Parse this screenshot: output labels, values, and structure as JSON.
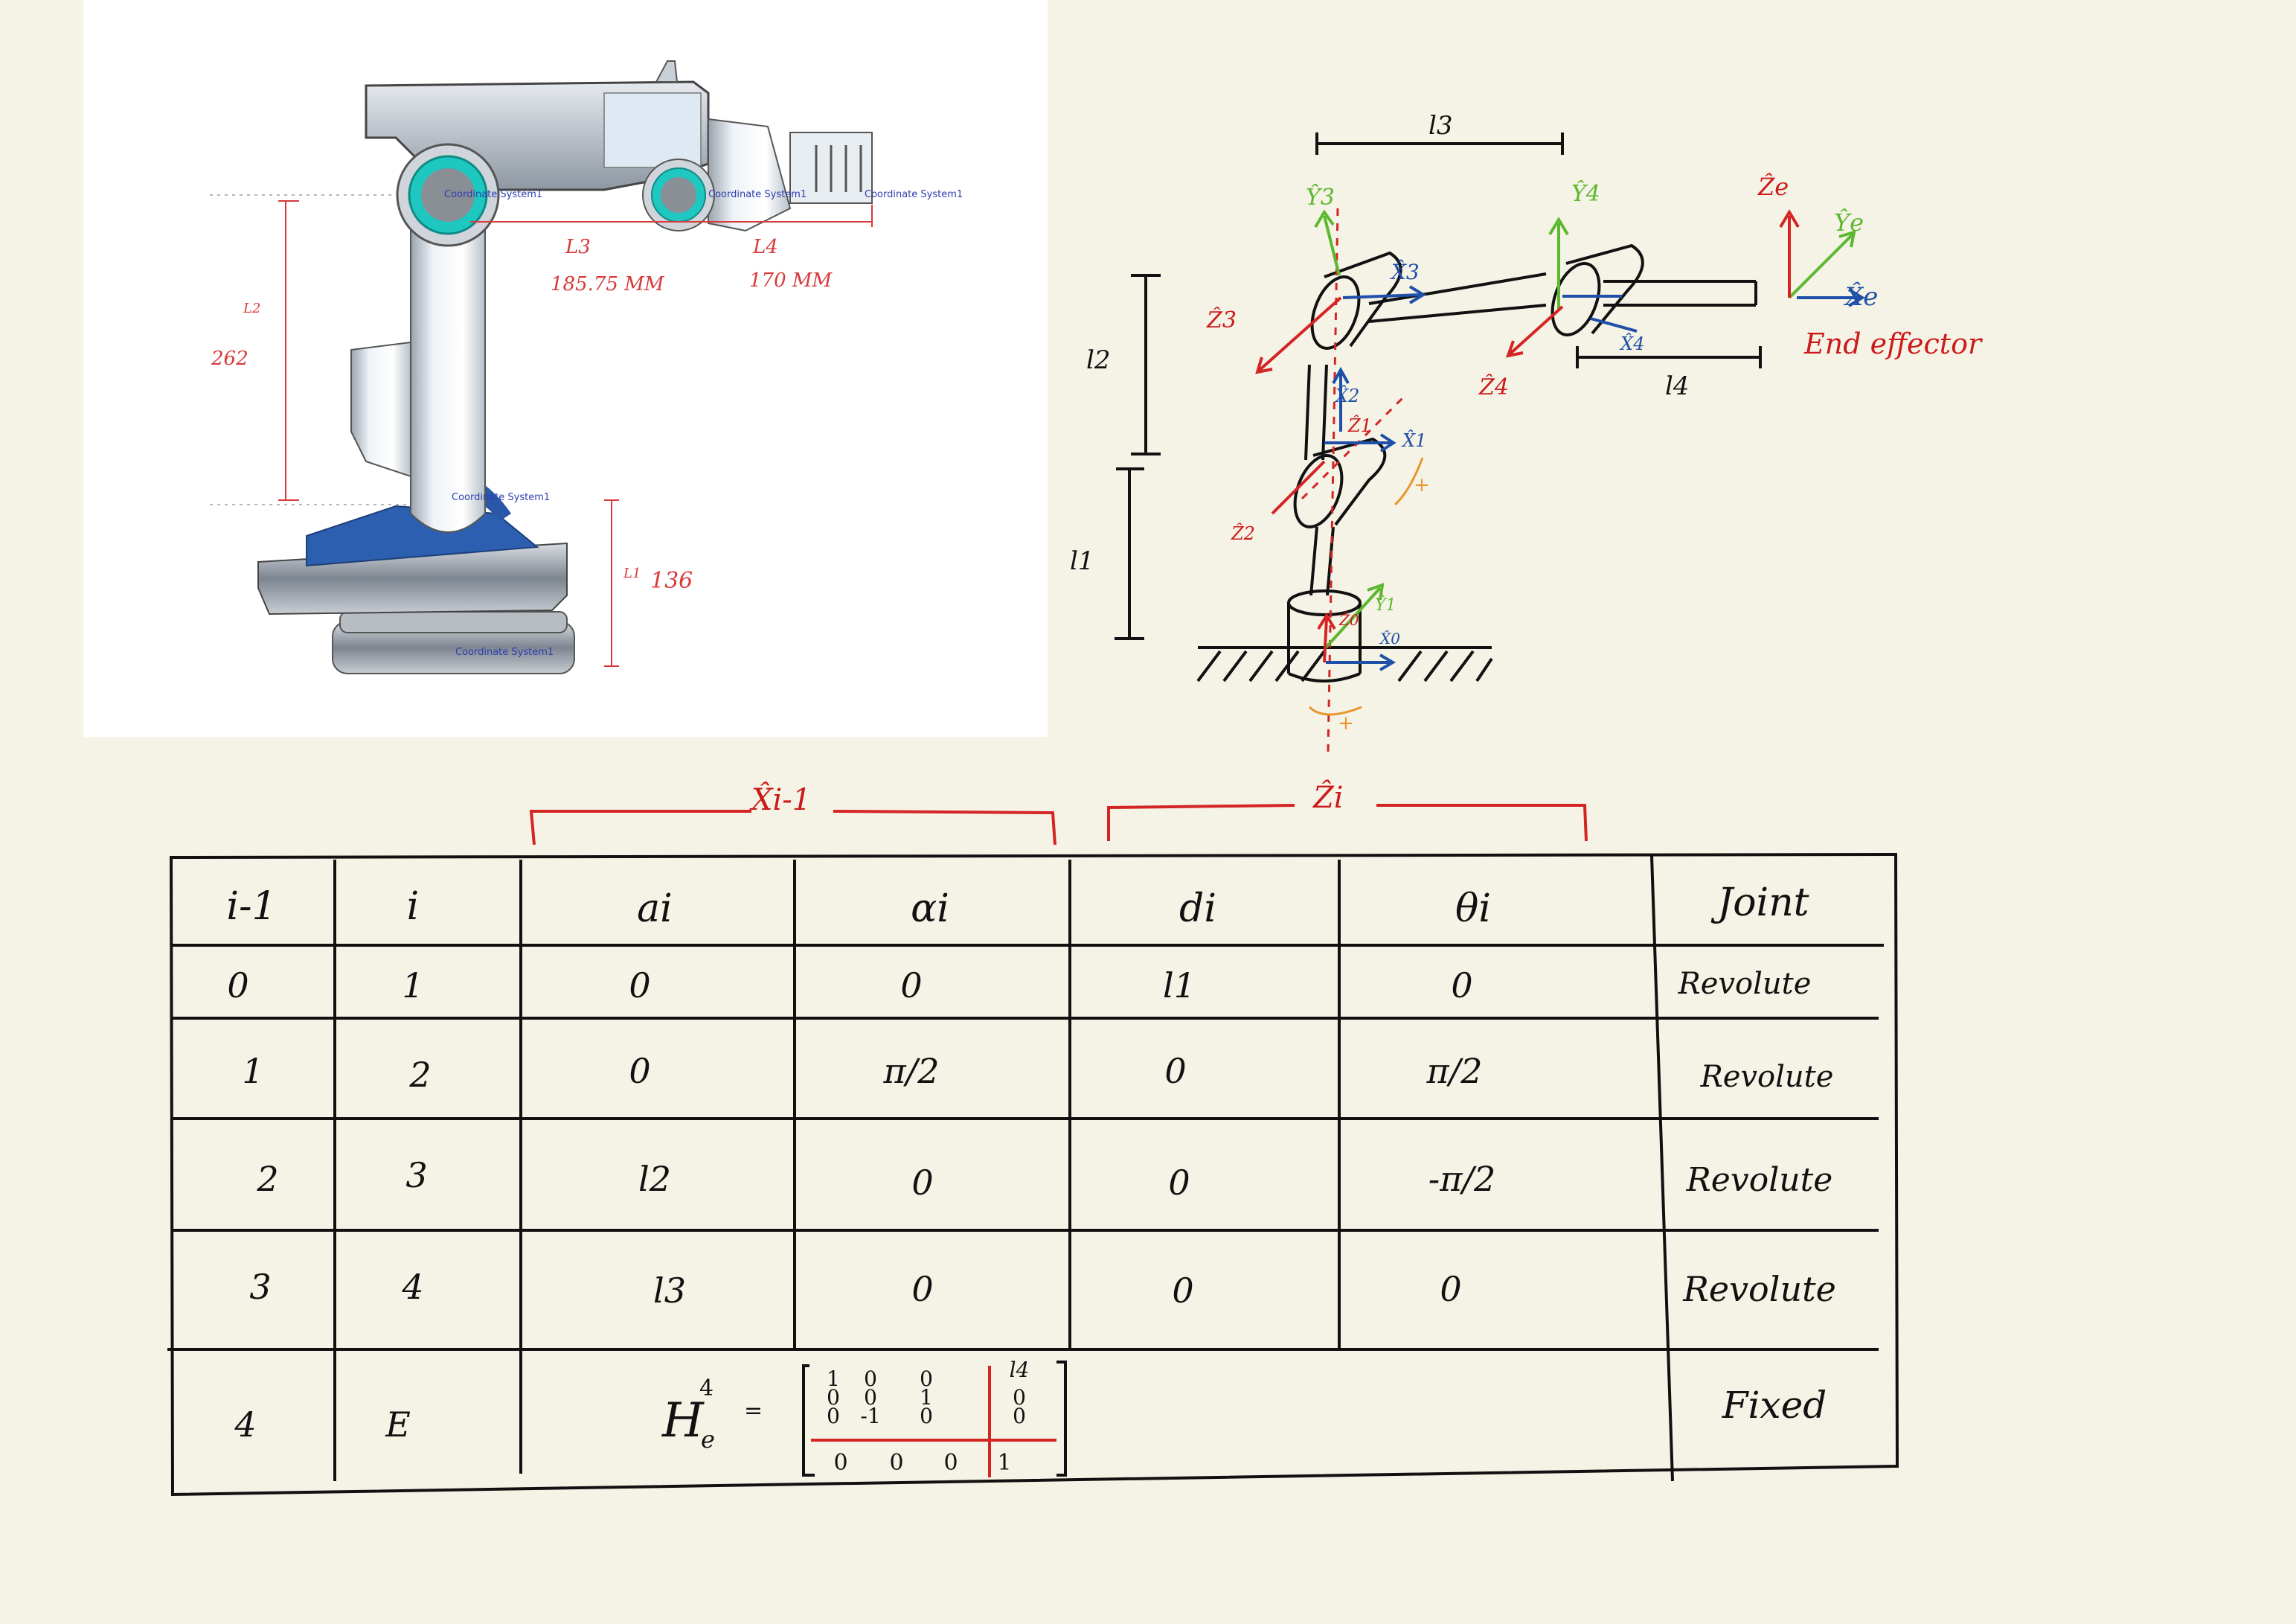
{
  "cad": {
    "coord_label": "Coordinate System1",
    "dim_l3_label": "L3",
    "dim_l3_value": "185.75 MM",
    "dim_l4_label": "L4",
    "dim_l4_value": "170 MM",
    "dim_l2_label": "L2",
    "dim_l2_value": "262",
    "dim_l1_label": "L1",
    "dim_l1_value": "136"
  },
  "schematic": {
    "l1": "l1",
    "l2": "l2",
    "l3": "l3",
    "l4": "l4",
    "end_effector": "End effector",
    "frames": {
      "y3": "Ŷ3",
      "x3": "X̂3",
      "z3": "Ẑ3",
      "y4": "Ŷ4",
      "x4": "X̂4",
      "z4": "Ẑ4",
      "ze": "Ẑe",
      "ye": "Ŷe",
      "xe": "X̂e",
      "x2": "X̂2",
      "z1": "Ẑ1",
      "x1": "X̂1",
      "z2": "Ẑ2",
      "y1": "Ŷ1",
      "z0": "Ẑ0",
      "x0": "X̂0"
    },
    "plus_sign": "+",
    "bracket_x": "X̂i-1",
    "bracket_z": "Ẑi"
  },
  "dh_table": {
    "headers": [
      "i-1",
      "i",
      "ai",
      "αi",
      "di",
      "θi",
      "Joint"
    ],
    "rows": [
      [
        "0",
        "1",
        "0",
        "0",
        "l1",
        "0",
        "Revolute"
      ],
      [
        "1",
        "2",
        "0",
        "π/2",
        "0",
        "π/2",
        "Revolute"
      ],
      [
        "2",
        "3",
        "l2",
        "0",
        "0",
        "-π/2",
        "Revolute"
      ],
      [
        "3",
        "4",
        "l3",
        "0",
        "0",
        "0",
        "Revolute"
      ]
    ],
    "last_row": {
      "c0": "4",
      "c1": "E",
      "joint": "Fixed"
    },
    "matrix_label": "H",
    "matrix_sup": "4",
    "matrix_sub": "e",
    "equals": "=",
    "matrix": [
      [
        "1",
        "0",
        "0",
        "l4"
      ],
      [
        "0",
        "0",
        "1",
        "0"
      ],
      [
        "0",
        "-1",
        "0",
        "0"
      ],
      [
        "0",
        "0",
        "0",
        "1"
      ]
    ]
  },
  "colors": {
    "red": "#cc1a1a",
    "blue": "#1f4fa8",
    "green": "#5cb82e",
    "orange": "#e8952b",
    "ink": "#111111"
  }
}
